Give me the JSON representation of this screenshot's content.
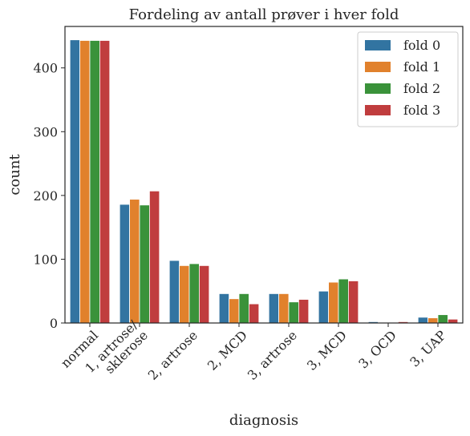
{
  "chart_data": {
    "type": "bar",
    "title": "Fordeling av antall prøver i hver fold",
    "xlabel": "diagnosis",
    "ylabel": "count",
    "ylim": [
      0,
      465
    ],
    "yticks": [
      0,
      100,
      200,
      300,
      400
    ],
    "grid": false,
    "legend_position": "top-right",
    "categories": [
      [
        "normal"
      ],
      [
        "1, artrose/",
        "sklerose"
      ],
      [
        "2, artrose"
      ],
      [
        "2, MCD"
      ],
      [
        "3, artrose"
      ],
      [
        "3, MCD"
      ],
      [
        "3, OCD"
      ],
      [
        "3, UAP"
      ]
    ],
    "series": [
      {
        "name": "fold 0",
        "color": "#3274a1",
        "values": [
          444,
          186,
          98,
          46,
          46,
          50,
          2,
          9
        ]
      },
      {
        "name": "fold 1",
        "color": "#e1812c",
        "values": [
          443,
          194,
          90,
          38,
          46,
          64,
          1,
          8
        ]
      },
      {
        "name": "fold 2",
        "color": "#3a923a",
        "values": [
          443,
          185,
          93,
          46,
          33,
          69,
          1,
          13
        ]
      },
      {
        "name": "fold 3",
        "color": "#c03d3e",
        "values": [
          443,
          207,
          90,
          30,
          37,
          66,
          2,
          6
        ]
      }
    ]
  }
}
